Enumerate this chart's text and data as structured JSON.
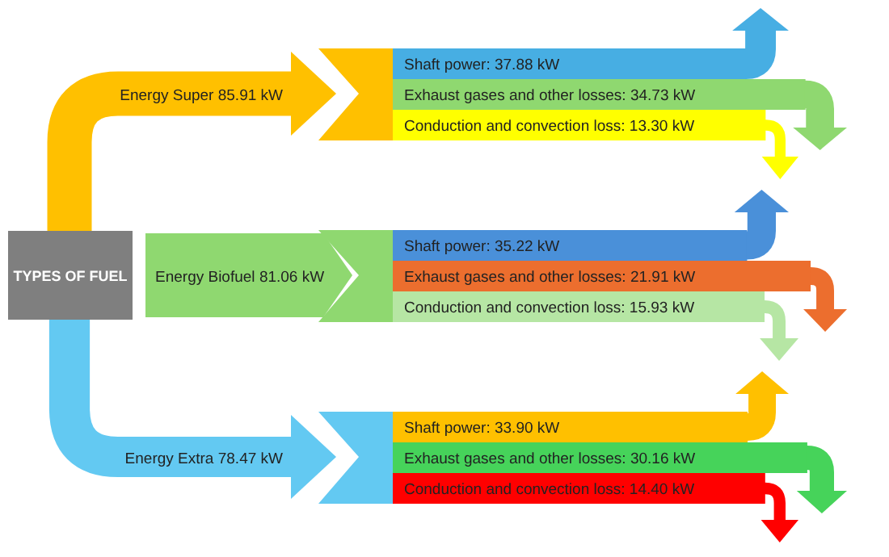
{
  "chart_data": {
    "type": "other",
    "title": "TYPES OF FUEL",
    "categories": [
      "Energy Super",
      "Energy Biofuel",
      "Energy Extra"
    ],
    "values": [
      85.91,
      81.06,
      78.47
    ],
    "value_labels": [
      "85.91 kW",
      "81.06 kW",
      "78.47 kW"
    ],
    "colors": [
      "#ffc000",
      "#8fd870",
      "#63c9f2"
    ],
    "series": [
      {
        "name": "Shaft power:",
        "values": [
          37.88,
          35.22,
          33.9
        ],
        "value_labels": [
          "37.88 kW",
          "35.22 kW",
          "33.90 kW"
        ],
        "colors": [
          "#47aee3",
          "#4a90d9",
          "#ffc000"
        ]
      },
      {
        "name": "Exhaust gases and other losses:",
        "values": [
          34.73,
          21.91,
          30.16
        ],
        "value_labels": [
          "34.73 kW",
          "21.91 kW",
          "30.16 kW"
        ],
        "colors": [
          "#8fd870",
          "#ec6e2e",
          "#46d35a"
        ]
      },
      {
        "name": "Conduction and convection loss:",
        "values": [
          13.3,
          15.93,
          14.4
        ],
        "value_labels": [
          "13.30 kW",
          "15.93 kW",
          "14.40 kW"
        ],
        "colors": [
          "#ffff00",
          "#b6e6a4",
          "#ff0000"
        ]
      }
    ]
  }
}
